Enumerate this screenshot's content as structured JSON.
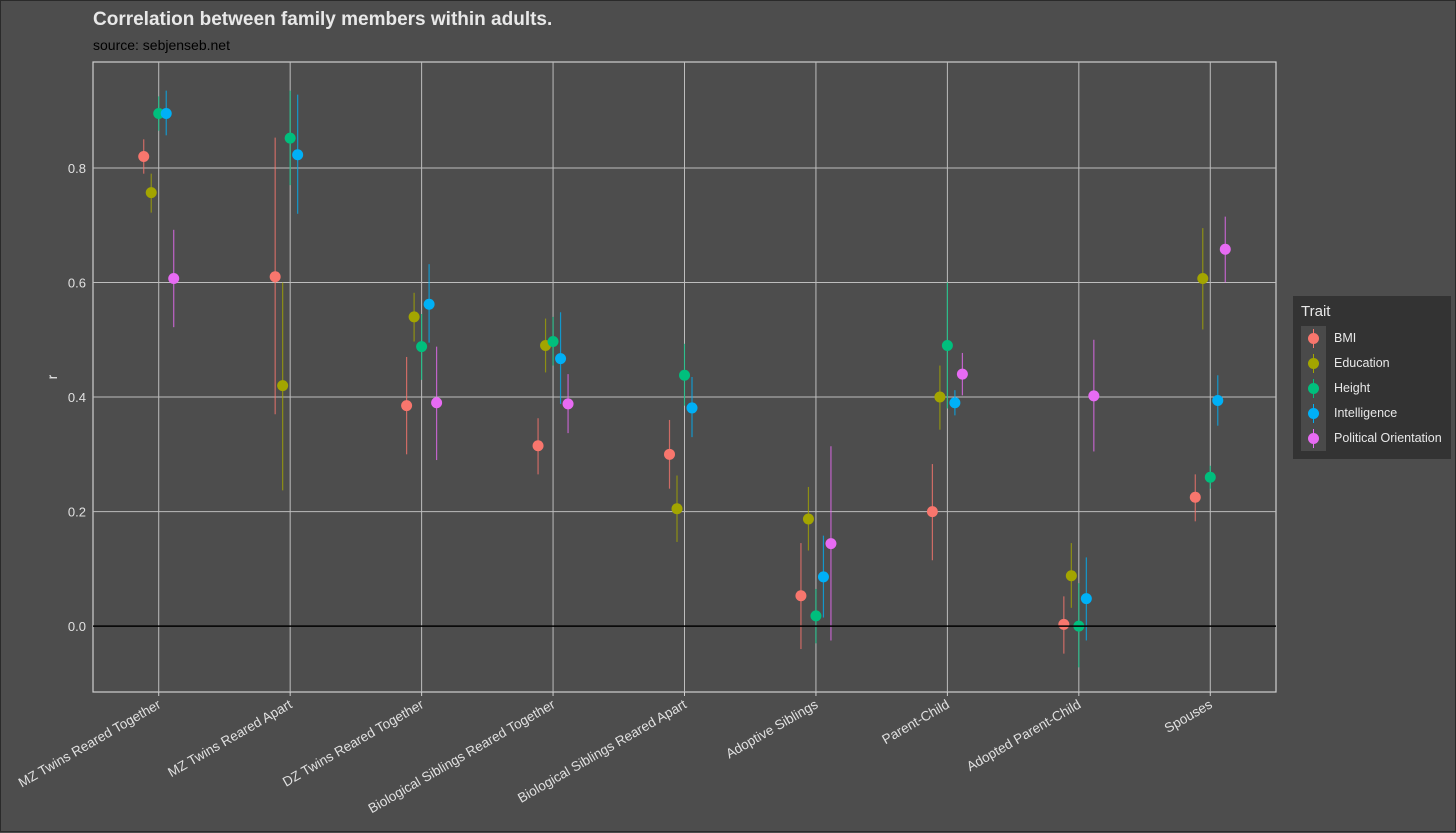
{
  "chart_data": {
    "type": "scatter",
    "title": "Correlation between family members within adults.",
    "subtitle": "source: sebjenseb.net",
    "xlabel": "",
    "ylabel": "r",
    "ylim": [
      -0.115,
      0.985
    ],
    "yticks": [
      "0.0",
      "0.2",
      "0.4",
      "0.6",
      "0.8"
    ],
    "ytick_values": [
      0.0,
      0.2,
      0.4,
      0.6,
      0.8
    ],
    "grid": true,
    "zero_line": true,
    "legend_position": "right",
    "legend_title": "Trait",
    "categories": [
      "MZ Twins Reared Together",
      "MZ Twins Reared Apart",
      "DZ Twins Reared Together",
      "Biological Siblings Reared Together",
      "Biological Siblings Reared Apart",
      "Adoptive Siblings",
      "Parent-Child",
      "Adopted Parent-Child",
      "Spouses"
    ],
    "series": [
      {
        "name": "BMI",
        "color": "#f8766d",
        "points": [
          {
            "category": 0,
            "y": 0.82,
            "lo": 0.79,
            "hi": 0.85
          },
          {
            "category": 1,
            "y": 0.61,
            "lo": 0.37,
            "hi": 0.853
          },
          {
            "category": 2,
            "y": 0.385,
            "lo": 0.3,
            "hi": 0.47
          },
          {
            "category": 3,
            "y": 0.315,
            "lo": 0.265,
            "hi": 0.363
          },
          {
            "category": 4,
            "y": 0.3,
            "lo": 0.24,
            "hi": 0.36
          },
          {
            "category": 5,
            "y": 0.053,
            "lo": -0.04,
            "hi": 0.145
          },
          {
            "category": 6,
            "y": 0.2,
            "lo": 0.115,
            "hi": 0.283
          },
          {
            "category": 7,
            "y": 0.003,
            "lo": -0.048,
            "hi": 0.052
          },
          {
            "category": 8,
            "y": 0.225,
            "lo": 0.183,
            "hi": 0.265
          }
        ]
      },
      {
        "name": "Education",
        "color": "#a3a500",
        "points": [
          {
            "category": 0,
            "y": 0.757,
            "lo": 0.722,
            "hi": 0.79
          },
          {
            "category": 1,
            "y": 0.42,
            "lo": 0.237,
            "hi": 0.6
          },
          {
            "category": 2,
            "y": 0.54,
            "lo": 0.497,
            "hi": 0.582
          },
          {
            "category": 3,
            "y": 0.49,
            "lo": 0.443,
            "hi": 0.537
          },
          {
            "category": 4,
            "y": 0.205,
            "lo": 0.147,
            "hi": 0.263
          },
          {
            "category": 5,
            "y": 0.187,
            "lo": 0.132,
            "hi": 0.243
          },
          {
            "category": 6,
            "y": 0.4,
            "lo": 0.343,
            "hi": 0.455
          },
          {
            "category": 7,
            "y": 0.088,
            "lo": 0.032,
            "hi": 0.145
          },
          {
            "category": 8,
            "y": 0.607,
            "lo": 0.518,
            "hi": 0.695
          }
        ]
      },
      {
        "name": "Height",
        "color": "#00bf7d",
        "points": [
          {
            "category": 0,
            "y": 0.895,
            "lo": 0.865,
            "hi": 0.925
          },
          {
            "category": 1,
            "y": 0.852,
            "lo": 0.77,
            "hi": 0.935
          },
          {
            "category": 2,
            "y": 0.488,
            "lo": 0.43,
            "hi": 0.545
          },
          {
            "category": 3,
            "y": 0.497,
            "lo": 0.455,
            "hi": 0.54
          },
          {
            "category": 4,
            "y": 0.438,
            "lo": 0.385,
            "hi": 0.493
          },
          {
            "category": 5,
            "y": 0.018,
            "lo": -0.03,
            "hi": 0.065
          },
          {
            "category": 6,
            "y": 0.49,
            "lo": 0.38,
            "hi": 0.6
          },
          {
            "category": 7,
            "y": 0.0,
            "lo": -0.072,
            "hi": 0.075
          },
          {
            "category": 8,
            "y": 0.26,
            "lo": 0.24,
            "hi": 0.28
          }
        ]
      },
      {
        "name": "Intelligence",
        "color": "#00b0f6",
        "points": [
          {
            "category": 0,
            "y": 0.895,
            "lo": 0.857,
            "hi": 0.935
          },
          {
            "category": 1,
            "y": 0.823,
            "lo": 0.72,
            "hi": 0.928
          },
          {
            "category": 2,
            "y": 0.562,
            "lo": 0.495,
            "hi": 0.632
          },
          {
            "category": 3,
            "y": 0.467,
            "lo": 0.388,
            "hi": 0.548
          },
          {
            "category": 4,
            "y": 0.381,
            "lo": 0.33,
            "hi": 0.435
          },
          {
            "category": 5,
            "y": 0.086,
            "lo": 0.015,
            "hi": 0.158
          },
          {
            "category": 6,
            "y": 0.39,
            "lo": 0.368,
            "hi": 0.412
          },
          {
            "category": 7,
            "y": 0.048,
            "lo": -0.025,
            "hi": 0.12
          },
          {
            "category": 8,
            "y": 0.394,
            "lo": 0.35,
            "hi": 0.438
          }
        ]
      },
      {
        "name": "Political Orientation",
        "color": "#e76bf3",
        "points": [
          {
            "category": 0,
            "y": 0.607,
            "lo": 0.522,
            "hi": 0.692
          },
          {
            "category": 2,
            "y": 0.39,
            "lo": 0.29,
            "hi": 0.488
          },
          {
            "category": 3,
            "y": 0.388,
            "lo": 0.337,
            "hi": 0.44
          },
          {
            "category": 5,
            "y": 0.144,
            "lo": -0.025,
            "hi": 0.314
          },
          {
            "category": 6,
            "y": 0.44,
            "lo": 0.403,
            "hi": 0.477
          },
          {
            "category": 7,
            "y": 0.402,
            "lo": 0.305,
            "hi": 0.5
          },
          {
            "category": 8,
            "y": 0.658,
            "lo": 0.6,
            "hi": 0.715
          }
        ]
      }
    ]
  }
}
